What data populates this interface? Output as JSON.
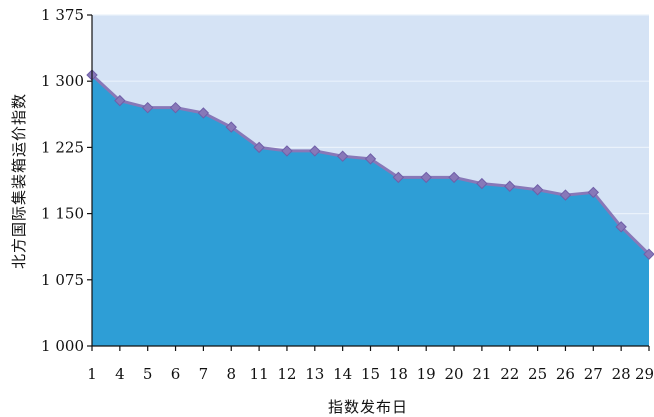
{
  "chart_data": {
    "type": "area",
    "xlabel": "指数发布日",
    "ylabel": "北方国际集装箱运价指数",
    "categories": [
      "1",
      "4",
      "5",
      "6",
      "7",
      "8",
      "11",
      "12",
      "13",
      "14",
      "15",
      "18",
      "19",
      "20",
      "21",
      "22",
      "25",
      "26",
      "27",
      "28",
      "29"
    ],
    "series": [
      {
        "values": [
          1307,
          1278,
          1270,
          1270,
          1264,
          1248,
          1225,
          1221,
          1221,
          1215,
          1212,
          1191,
          1191,
          1191,
          1184,
          1181,
          1177,
          1171,
          1174,
          1135,
          1104
        ]
      }
    ],
    "ylim": [
      1000,
      1375
    ],
    "yticks": [
      1000,
      1075,
      1150,
      1225,
      1300,
      1375
    ],
    "ytick_labels": [
      "1 000",
      "1 075",
      "1 150",
      "1 225",
      "1 300",
      "1 375"
    ],
    "grid": true,
    "colors": {
      "plot_background": "#d5e3f5",
      "area_fill": "#2e9ed6",
      "line": "#8878b8",
      "marker": "#8878b8",
      "grid": "#eaf2fb",
      "axis": "#111111"
    }
  }
}
